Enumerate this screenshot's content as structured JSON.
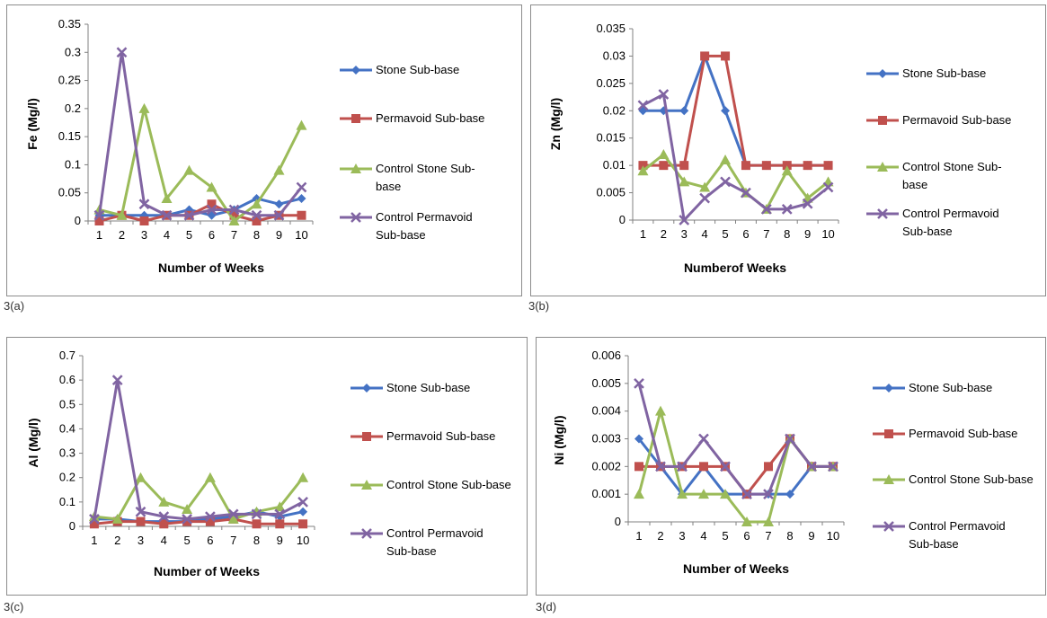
{
  "colors": {
    "stone": "#4472C4",
    "permavoid": "#C0504D",
    "control_stone": "#9BBB59",
    "control_permavoid": "#8064A2"
  },
  "labels": [
    "3(a)",
    "3(b)",
    "3(c)",
    "3(d)"
  ],
  "chart_data": [
    {
      "type": "line",
      "ylabel": "Fe (Mg/l)",
      "xlabel": "Number of Weeks",
      "ylim": [
        0,
        0.35
      ],
      "yticks": [
        "0",
        "0.05",
        "0.1",
        "0.15",
        "0.2",
        "0.25",
        "0.3",
        "0.35"
      ],
      "x": [
        "1",
        "2",
        "3",
        "4",
        "5",
        "6",
        "7",
        "8",
        "9",
        "10"
      ],
      "legend": "right",
      "series": [
        {
          "name": "Stone Sub-base",
          "marker": "diamond",
          "values": [
            0.01,
            0.01,
            0.01,
            0.01,
            0.02,
            0.01,
            0.02,
            0.04,
            0.03,
            0.04
          ]
        },
        {
          "name": "Permavoid Sub-base",
          "marker": "square",
          "values": [
            0,
            0.01,
            0,
            0.01,
            0.01,
            0.03,
            0.01,
            0,
            0.01,
            0.01
          ]
        },
        {
          "name": "Control Stone Sub-base",
          "marker": "triangle",
          "values": [
            0.02,
            0.01,
            0.2,
            0.04,
            0.09,
            0.06,
            0,
            0.03,
            0.09,
            0.17
          ]
        },
        {
          "name": "Control Permavoid Sub-base",
          "marker": "x",
          "values": [
            0.01,
            0.3,
            0.03,
            0.01,
            0.01,
            0.02,
            0.02,
            0.01,
            0.01,
            0.06
          ]
        }
      ]
    },
    {
      "type": "line",
      "ylabel": "Zn (Mg/l)",
      "xlabel": "Numberof Weeks",
      "ylim": [
        0,
        0.035
      ],
      "yticks": [
        "0",
        "0.005",
        "0.01",
        "0.015",
        "0.02",
        "0.025",
        "0.03",
        "0.035"
      ],
      "x": [
        "1",
        "2",
        "3",
        "4",
        "5",
        "6",
        "7",
        "8",
        "9",
        "10"
      ],
      "legend": "right",
      "series": [
        {
          "name": "Stone Sub-base",
          "marker": "diamond",
          "values": [
            0.02,
            0.02,
            0.02,
            0.03,
            0.02,
            0.01,
            0.01,
            0.01,
            0.01,
            0.01
          ]
        },
        {
          "name": "Permavoid Sub-base",
          "marker": "square",
          "values": [
            0.01,
            0.01,
            0.01,
            0.03,
            0.03,
            0.01,
            0.01,
            0.01,
            0.01,
            0.01
          ]
        },
        {
          "name": "Control Stone Sub-base",
          "marker": "triangle",
          "values": [
            0.009,
            0.012,
            0.007,
            0.006,
            0.011,
            0.005,
            0.002,
            0.009,
            0.004,
            0.007
          ]
        },
        {
          "name": "Control Permavoid Sub-base",
          "marker": "x",
          "values": [
            0.021,
            0.023,
            0,
            0.004,
            0.007,
            0.005,
            0.002,
            0.002,
            0.003,
            0.006
          ]
        }
      ]
    },
    {
      "type": "line",
      "ylabel": "Al (Mg/l)",
      "xlabel": "Number of Weeks",
      "ylim": [
        0,
        0.7
      ],
      "yticks": [
        "0",
        "0.1",
        "0.2",
        "0.3",
        "0.4",
        "0.5",
        "0.6",
        "0.7"
      ],
      "x": [
        "1",
        "2",
        "3",
        "4",
        "5",
        "6",
        "7",
        "8",
        "9",
        "10"
      ],
      "legend": "right",
      "series": [
        {
          "name": "Stone Sub-base",
          "marker": "diamond",
          "values": [
            0.03,
            0.03,
            0.02,
            0.02,
            0.02,
            0.03,
            0.04,
            0.06,
            0.04,
            0.06
          ]
        },
        {
          "name": "Permavoid Sub-base",
          "marker": "square",
          "values": [
            0.01,
            0.02,
            0.02,
            0.01,
            0.02,
            0.02,
            0.03,
            0.01,
            0.01,
            0.01
          ]
        },
        {
          "name": "Control Stone Sub-base",
          "marker": "triangle",
          "values": [
            0.04,
            0.03,
            0.2,
            0.1,
            0.07,
            0.2,
            0.03,
            0.06,
            0.08,
            0.2
          ]
        },
        {
          "name": "Control Permavoid Sub-base",
          "marker": "x",
          "values": [
            0.03,
            0.6,
            0.06,
            0.04,
            0.03,
            0.04,
            0.05,
            0.05,
            0.05,
            0.1
          ]
        }
      ]
    },
    {
      "type": "line",
      "ylabel": "Ni (Mg/l)",
      "xlabel": "Number of Weeks",
      "ylim": [
        0,
        0.006
      ],
      "yticks": [
        "0",
        "0.001",
        "0.002",
        "0.003",
        "0.004",
        "0.005",
        "0.006"
      ],
      "x": [
        "1",
        "2",
        "3",
        "4",
        "5",
        "6",
        "7",
        "8",
        "9",
        "10"
      ],
      "legend": "right",
      "series": [
        {
          "name": "Stone Sub-base",
          "marker": "diamond",
          "values": [
            0.003,
            0.002,
            0.001,
            0.002,
            0.001,
            0.001,
            0.001,
            0.001,
            0.002,
            0.002
          ]
        },
        {
          "name": "Permavoid Sub-base",
          "marker": "square",
          "values": [
            0.002,
            0.002,
            0.002,
            0.002,
            0.002,
            0.001,
            0.002,
            0.003,
            0.002,
            0.002
          ]
        },
        {
          "name": "Control Stone Sub-base",
          "marker": "triangle",
          "values": [
            0.001,
            0.004,
            0.001,
            0.001,
            0.001,
            0,
            0,
            0.003,
            0.002,
            0.002
          ]
        },
        {
          "name": "Control Permavoid Sub-base",
          "marker": "x",
          "values": [
            0.005,
            0.002,
            0.002,
            0.003,
            0.002,
            0.001,
            0.001,
            0.003,
            0.002,
            0.002
          ]
        }
      ]
    }
  ]
}
